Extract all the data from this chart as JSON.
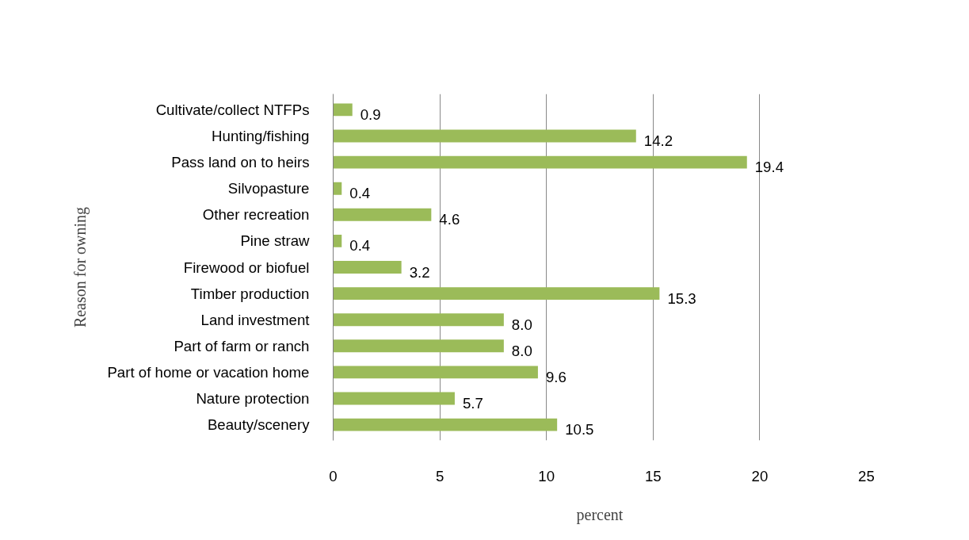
{
  "chart_data": {
    "type": "bar",
    "orientation": "horizontal",
    "xlabel": "percent",
    "ylabel": "Reason for owning",
    "categories": [
      "Cultivate/collect NTFPs",
      "Hunting/fishing",
      "Pass land on to heirs",
      "Silvopasture",
      "Other recreation",
      "Pine straw",
      "Firewood or biofuel",
      "Timber production",
      "Land investment",
      "Part of farm or ranch",
      "Part of home or vacation home",
      "Nature protection",
      "Beauty/scenery"
    ],
    "values": [
      0.9,
      14.2,
      19.4,
      0.4,
      4.6,
      0.4,
      3.2,
      15.3,
      8.0,
      8.0,
      9.6,
      5.7,
      10.5
    ],
    "value_labels": [
      "0.9",
      "14.2",
      "19.4",
      "0.4",
      "4.6",
      "0.4",
      "3.2",
      "15.3",
      "8.0",
      "8.0",
      "9.6",
      "5.7",
      "10.5"
    ],
    "color": "#9bbb59",
    "xlim": [
      0,
      25
    ],
    "xticks": [
      0,
      5,
      10,
      15,
      20,
      25
    ],
    "grid": "x"
  }
}
